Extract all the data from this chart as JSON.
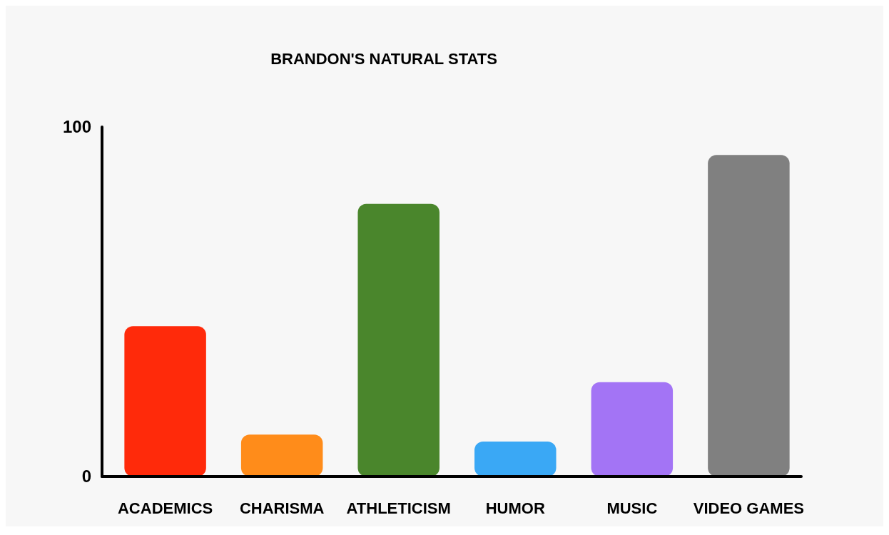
{
  "chart_data": {
    "type": "bar",
    "title": "BRANDON'S NATURAL STATS",
    "categories": [
      "ACADEMICS",
      "CHARISMA",
      "ATHLETICISM",
      "HUMOR",
      "MUSIC",
      "VIDEO GAMES"
    ],
    "values": [
      43,
      12,
      78,
      10,
      27,
      92
    ],
    "colors": [
      "#ff2a0a",
      "#ff8c1a",
      "#4a862c",
      "#3aa8f5",
      "#a374f5",
      "#808080"
    ],
    "ylim": [
      0,
      100
    ],
    "yticks": [
      0,
      100
    ],
    "grid": false
  }
}
